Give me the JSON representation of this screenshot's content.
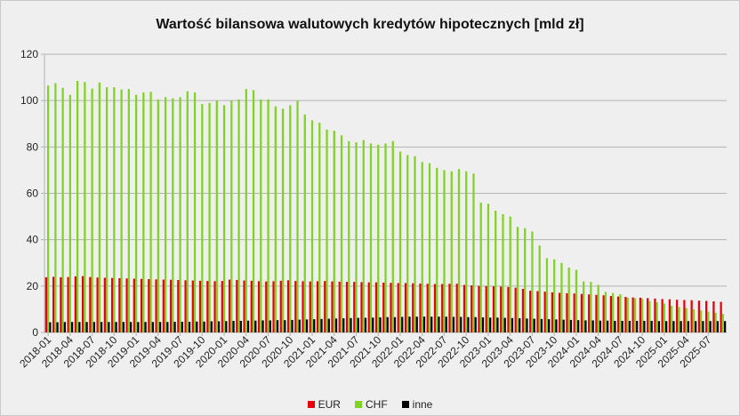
{
  "chart_data": {
    "type": "bar",
    "title": "Wartość bilansowa walutowych kredytów hipotecznych [mld zł]",
    "xlabel": "",
    "ylabel": "",
    "ylim": [
      0,
      120
    ],
    "yticks": [
      0,
      20,
      40,
      60,
      80,
      100,
      120
    ],
    "grid": "horizontal",
    "legend_position": "bottom",
    "start_month": "2018-01",
    "categories": [
      "2018-01",
      "2018-02",
      "2018-03",
      "2018-04",
      "2018-05",
      "2018-06",
      "2018-07",
      "2018-08",
      "2018-09",
      "2018-10",
      "2018-11",
      "2018-12",
      "2019-01",
      "2019-02",
      "2019-03",
      "2019-04",
      "2019-05",
      "2019-06",
      "2019-07",
      "2019-08",
      "2019-09",
      "2019-10",
      "2019-11",
      "2019-12",
      "2020-01",
      "2020-02",
      "2020-03",
      "2020-04",
      "2020-05",
      "2020-06",
      "2020-07",
      "2020-08",
      "2020-09",
      "2020-10",
      "2020-11",
      "2020-12",
      "2021-01",
      "2021-02",
      "2021-03",
      "2021-04",
      "2021-05",
      "2021-06",
      "2021-07",
      "2021-08",
      "2021-09",
      "2021-10",
      "2021-11",
      "2021-12",
      "2022-01",
      "2022-02",
      "2022-03",
      "2022-04",
      "2022-05",
      "2022-06",
      "2022-07",
      "2022-08",
      "2022-09",
      "2022-10",
      "2022-11",
      "2022-12",
      "2023-01",
      "2023-02",
      "2023-03",
      "2023-04",
      "2023-05",
      "2023-06",
      "2023-07",
      "2023-08",
      "2023-09",
      "2023-10",
      "2023-11",
      "2023-12",
      "2024-01",
      "2024-02",
      "2024-03",
      "2024-04",
      "2024-05",
      "2024-06",
      "2024-07",
      "2024-08",
      "2024-09",
      "2024-10",
      "2024-11",
      "2024-12",
      "2025-01",
      "2025-02",
      "2025-03",
      "2025-04",
      "2025-05",
      "2025-06",
      "2025-07",
      "2025-08",
      "2025-09"
    ],
    "visible_tick_labels": [
      "2018-01",
      "2018-04",
      "2018-07",
      "2018-10",
      "2019-01",
      "2019-04",
      "2019-07",
      "2019-10",
      "2020-01",
      "2020-04",
      "2020-07",
      "2020-10",
      "2021-01",
      "2021-04",
      "2021-07",
      "2021-10",
      "2022-01",
      "2022-04",
      "2022-07",
      "2022-10",
      "2023-01",
      "2023-04",
      "2023-07",
      "2023-10",
      "2024-01",
      "2024-04",
      "2024-07",
      "2024-10",
      "2025-01",
      "2025-04",
      "2025-07"
    ],
    "series": [
      {
        "name": "EUR",
        "color": "#e8000b",
        "values": [
          23.8,
          24.0,
          23.8,
          23.9,
          24.2,
          24.3,
          23.9,
          23.7,
          23.6,
          23.5,
          23.4,
          23.3,
          23.2,
          23.1,
          23.0,
          22.9,
          22.8,
          22.7,
          22.6,
          22.5,
          22.4,
          22.3,
          22.2,
          22.1,
          22.2,
          22.8,
          22.6,
          22.4,
          22.3,
          22.1,
          22.0,
          22.1,
          22.3,
          22.5,
          22.2,
          22.1,
          22.0,
          22.1,
          22.2,
          22.0,
          21.9,
          21.8,
          21.8,
          21.7,
          21.6,
          21.6,
          21.5,
          21.4,
          21.3,
          21.3,
          21.2,
          21.1,
          21.0,
          20.9,
          20.9,
          21.0,
          21.0,
          20.5,
          20.3,
          20.1,
          20.0,
          19.9,
          19.8,
          19.6,
          19.3,
          18.8,
          18.0,
          17.8,
          17.6,
          17.3,
          17.1,
          16.9,
          16.8,
          16.6,
          16.4,
          16.2,
          16.0,
          15.7,
          15.5,
          15.3,
          15.1,
          15.0,
          14.8,
          14.6,
          14.4,
          14.3,
          14.1,
          14.0,
          13.9,
          13.7,
          13.6,
          13.4,
          13.2
        ]
      },
      {
        "name": "CHF",
        "color": "#7fd322",
        "values": [
          106.5,
          107.5,
          105.5,
          102.5,
          108.5,
          108.0,
          105.2,
          107.8,
          105.8,
          105.8,
          104.8,
          105.0,
          102.5,
          103.5,
          103.8,
          100.5,
          101.5,
          101.0,
          101.5,
          104.0,
          103.5,
          98.5,
          99.0,
          100.0,
          98.0,
          100.0,
          100.5,
          105.0,
          104.5,
          100.5,
          100.5,
          97.5,
          96.5,
          98.0,
          100.0,
          94.0,
          91.5,
          90.5,
          87.5,
          87.0,
          85.0,
          82.5,
          82.0,
          83.0,
          81.5,
          81.0,
          81.5,
          82.5,
          78.0,
          76.5,
          76.0,
          73.5,
          73.0,
          71.0,
          70.0,
          69.5,
          70.5,
          69.5,
          68.5,
          56.0,
          55.5,
          52.5,
          51.0,
          50.0,
          45.5,
          45.0,
          43.5,
          37.5,
          32.0,
          31.5,
          30.0,
          28.0,
          27.0,
          22.0,
          21.8,
          20.5,
          17.5,
          17.0,
          16.5,
          15.0,
          14.8,
          14.5,
          13.5,
          13.0,
          12.5,
          11.5,
          11.0,
          10.5,
          10.0,
          9.5,
          9.0,
          8.5,
          8.0
        ]
      },
      {
        "name": "inne",
        "color": "#000000",
        "values": [
          4.4,
          4.4,
          4.5,
          4.5,
          4.5,
          4.5,
          4.5,
          4.5,
          4.5,
          4.5,
          4.5,
          4.5,
          4.5,
          4.5,
          4.5,
          4.5,
          4.5,
          4.6,
          4.6,
          4.6,
          4.7,
          4.7,
          4.8,
          4.8,
          4.9,
          5.0,
          5.0,
          5.1,
          5.1,
          5.2,
          5.2,
          5.3,
          5.3,
          5.4,
          5.5,
          5.6,
          5.7,
          5.8,
          5.9,
          6.0,
          6.1,
          6.2,
          6.3,
          6.3,
          6.4,
          6.5,
          6.6,
          6.6,
          6.7,
          6.8,
          6.8,
          6.8,
          6.8,
          6.8,
          6.8,
          6.7,
          6.7,
          6.6,
          6.6,
          6.5,
          6.4,
          6.4,
          6.3,
          6.2,
          6.1,
          6.0,
          5.9,
          5.8,
          5.7,
          5.6,
          5.5,
          5.4,
          5.3,
          5.2,
          5.2,
          5.1,
          5.1,
          5.0,
          5.0,
          5.0,
          5.0,
          5.0,
          5.0,
          4.9,
          4.9,
          4.9,
          4.9,
          4.9,
          4.9,
          4.9,
          4.9,
          4.9,
          4.9
        ]
      }
    ]
  }
}
